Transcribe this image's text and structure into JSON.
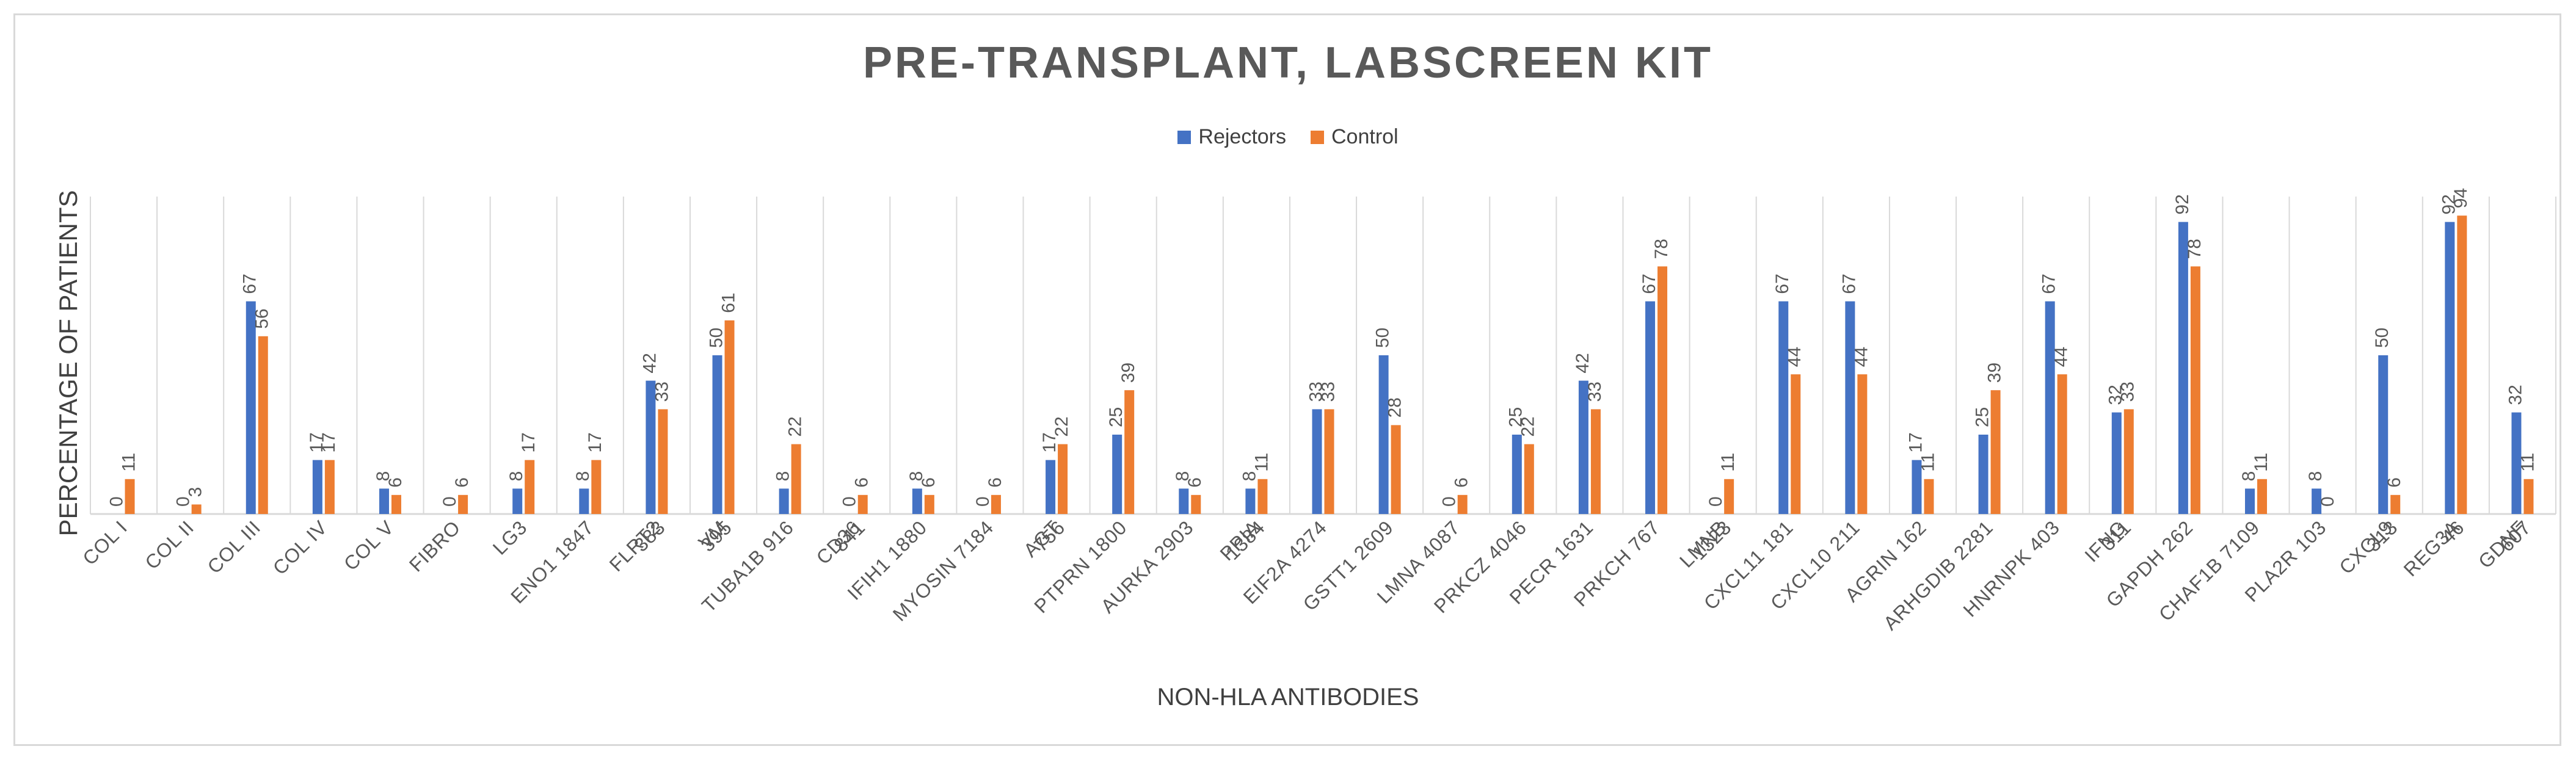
{
  "chart_data": {
    "type": "bar",
    "title": "PRE-TRANSPLANT, LABSCREEN KIT",
    "xlabel": "NON-HLA ANTIBODIES",
    "ylabel": "PERCENTAGE OF PATIENTS",
    "ylim": [
      0,
      100
    ],
    "grid": "vertical",
    "legend_position": "top-center",
    "categories": [
      "COL I",
      "COL II",
      "COL III",
      "COL IV",
      "COL V",
      "FIBRO",
      "LG3",
      "ENO1 1847",
      "FLRT2",
      "VM",
      "TUBA1B 916",
      "CD36",
      "IFIH1 1880",
      "MYOSIN 7184",
      "AGT",
      "PTPRN 1800",
      "AURKA 2903",
      "PPIA",
      "EIF2A 4274",
      "GSTT1 2609",
      "LMNA 4087",
      "PRKCZ 4046",
      "PECR 1631",
      "PRKCH 767",
      "LMNB",
      "CXCL11 181",
      "CXCL10 211",
      "AGRIN 162",
      "ARHGDIB 2281",
      "HNRNPK 403",
      "IFNG",
      "GAPDH 262",
      "CHAF1B 7109",
      "PLA2R 103",
      "CXCL9",
      "REG3A",
      "GDNF"
    ],
    "raised_labels": [
      "",
      "",
      "",
      "",
      "",
      "",
      "",
      "",
      "383",
      "395",
      "",
      "841",
      "",
      "",
      "756",
      "",
      "",
      "1384",
      "",
      "",
      "",
      "",
      "",
      "",
      "1323",
      "",
      "",
      "",
      "",
      "",
      "311",
      "",
      "",
      "",
      "313",
      "46",
      "607"
    ],
    "series": [
      {
        "name": "Rejectors",
        "color": "#4472c4",
        "values": [
          0,
          0,
          67,
          17,
          8,
          0,
          8,
          8,
          42,
          50,
          8,
          0,
          8,
          0,
          17,
          25,
          8,
          8,
          33,
          50,
          0,
          25,
          42,
          67,
          0,
          67,
          67,
          17,
          25,
          67,
          32,
          92,
          8,
          8,
          50,
          92,
          32
        ]
      },
      {
        "name": "Control",
        "color": "#ed7d31",
        "values": [
          11,
          3,
          56,
          17,
          6,
          6,
          17,
          17,
          33,
          61,
          22,
          6,
          6,
          6,
          22,
          39,
          6,
          11,
          33,
          28,
          6,
          22,
          33,
          78,
          11,
          44,
          44,
          11,
          39,
          44,
          33,
          78,
          11,
          0,
          6,
          94,
          11
        ]
      }
    ]
  }
}
